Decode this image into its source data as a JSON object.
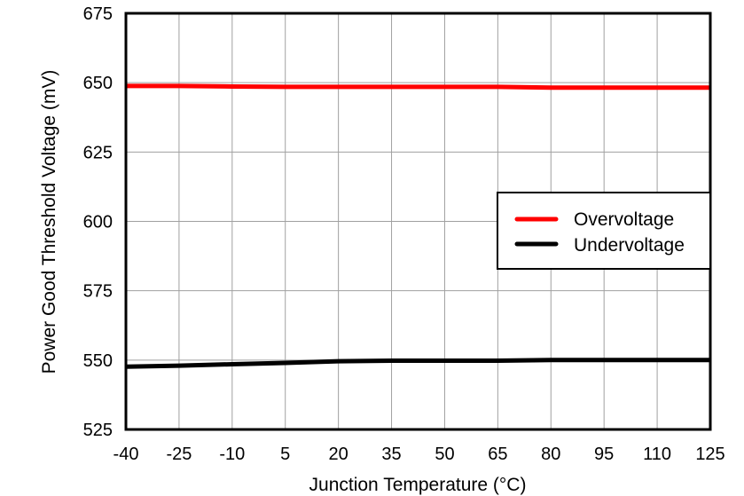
{
  "chart_data": {
    "type": "line",
    "title": "",
    "xlabel": "Junction Temperature (°C)",
    "ylabel": "Power Good Threshold Voltage (mV)",
    "xlim": [
      -40,
      125
    ],
    "ylim": [
      525,
      675
    ],
    "x_ticks": [
      "-40",
      "-25",
      "-10",
      "5",
      "20",
      "35",
      "50",
      "65",
      "80",
      "95",
      "110",
      "125"
    ],
    "y_ticks": [
      "525",
      "550",
      "575",
      "600",
      "625",
      "650",
      "675"
    ],
    "grid": true,
    "legend_position": "right-middle",
    "x": [
      -40,
      -25,
      -10,
      5,
      20,
      35,
      50,
      65,
      80,
      95,
      110,
      125
    ],
    "series": [
      {
        "name": "Overvoltage",
        "color": "#ff0000",
        "values": [
          648.8,
          648.8,
          648.6,
          648.5,
          648.5,
          648.5,
          648.5,
          648.5,
          648.2,
          648.2,
          648.2,
          648.2
        ]
      },
      {
        "name": "Undervoltage",
        "color": "#000000",
        "values": [
          547.6,
          548.0,
          548.5,
          549.0,
          549.6,
          549.8,
          549.8,
          549.8,
          550.0,
          550.0,
          550.0,
          550.0
        ]
      }
    ]
  },
  "legend": {
    "items": [
      {
        "label": "Overvoltage",
        "color": "#ff0000"
      },
      {
        "label": "Undervoltage",
        "color": "#000000"
      }
    ]
  }
}
